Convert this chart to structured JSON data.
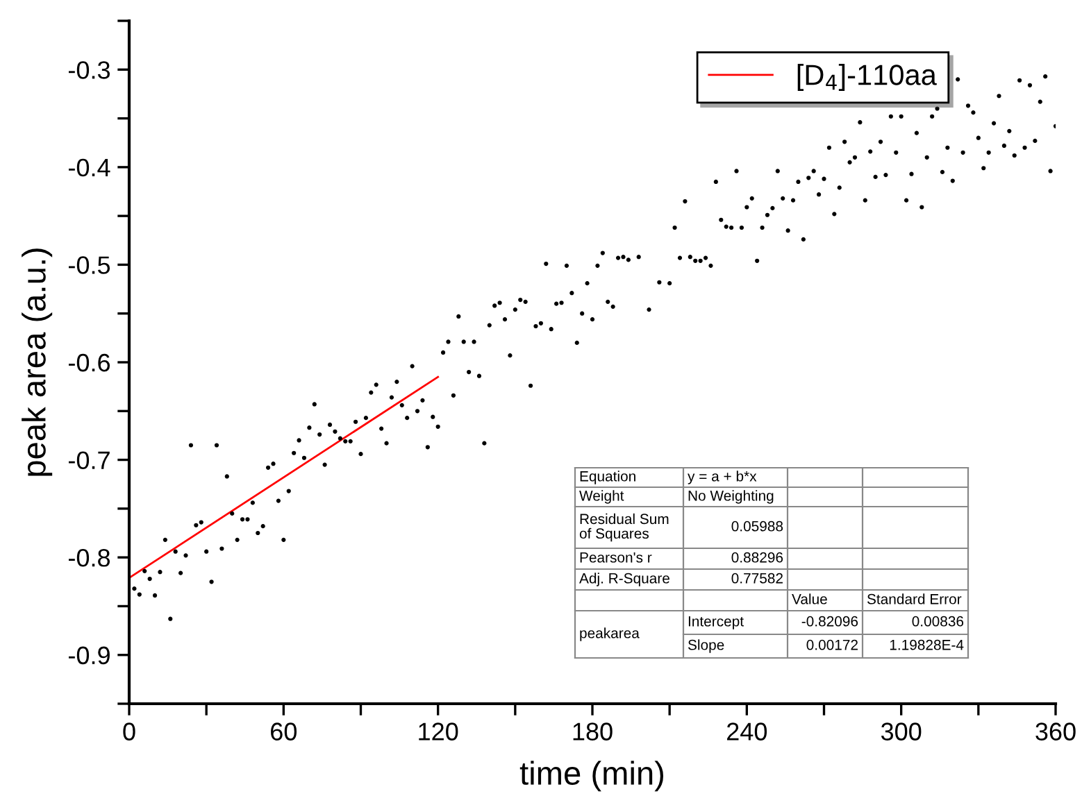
{
  "chart_data": {
    "type": "scatter",
    "xlabel": "time (min)",
    "ylabel": "peak area (a.u.)",
    "xlim": [
      0,
      360
    ],
    "ylim": [
      -0.95,
      -0.25
    ],
    "xticks": [
      0,
      {
        "value": 30,
        "label": null
      },
      60,
      {
        "value": 90,
        "label": null
      },
      120,
      {
        "value": 150,
        "label": null
      },
      180,
      {
        "value": 210,
        "label": null
      },
      240,
      {
        "value": 270,
        "label": null
      },
      300,
      {
        "value": 330,
        "label": null
      },
      360
    ],
    "yticks": [
      {
        "value": -0.95,
        "label": null
      },
      -0.9,
      {
        "value": -0.85,
        "label": null
      },
      -0.8,
      {
        "value": -0.75,
        "label": null
      },
      -0.7,
      {
        "value": -0.65,
        "label": null
      },
      -0.6,
      {
        "value": -0.55,
        "label": null
      },
      -0.5,
      {
        "value": -0.45,
        "label": null
      },
      -0.4,
      {
        "value": -0.35,
        "label": null
      },
      -0.3,
      {
        "value": -0.25,
        "label": null
      }
    ],
    "legend": "top right",
    "series": [
      {
        "color": "#000000",
        "marker": "circle",
        "x": [
          2,
          4,
          6,
          8,
          10,
          12,
          14,
          16,
          18,
          20,
          22,
          24,
          26,
          28,
          30,
          32,
          34,
          36,
          38,
          40,
          42,
          44,
          46,
          48,
          50,
          52,
          54,
          56,
          58,
          60,
          62,
          64,
          66,
          68,
          70,
          72,
          74,
          76,
          78,
          80,
          82,
          84,
          86,
          88,
          90,
          92,
          94,
          96,
          98,
          100,
          102,
          104,
          106,
          108,
          110,
          112,
          114,
          116,
          118,
          120,
          122,
          124,
          126,
          128,
          130,
          132,
          134,
          136,
          138,
          140,
          142,
          144,
          146,
          148,
          150,
          152,
          154,
          156,
          158,
          160,
          162,
          164,
          166,
          168,
          170,
          172,
          174,
          176,
          178,
          180,
          182,
          184,
          186,
          188,
          190,
          192,
          194,
          198,
          202,
          206,
          210,
          212,
          214,
          216,
          218,
          220,
          222,
          224,
          226,
          228,
          230,
          232,
          234,
          236,
          238,
          240,
          242,
          244,
          246,
          248,
          250,
          252,
          254,
          256,
          258,
          260,
          262,
          264,
          266,
          268,
          270,
          272,
          274,
          276,
          278,
          280,
          282,
          284,
          286,
          288,
          290,
          292,
          294,
          296,
          298,
          300,
          302,
          304,
          306,
          308,
          310,
          312,
          314,
          316,
          318,
          320,
          322,
          324,
          326,
          328,
          330,
          332,
          334,
          336,
          338,
          340,
          342,
          344,
          346,
          348,
          350,
          352,
          354,
          356,
          358,
          360
        ],
        "values": [
          -0.832,
          -0.838,
          -0.814,
          -0.822,
          -0.839,
          -0.815,
          -0.782,
          -0.863,
          -0.794,
          -0.816,
          -0.798,
          -0.685,
          -0.767,
          -0.764,
          -0.794,
          -0.825,
          -0.685,
          -0.791,
          -0.717,
          -0.755,
          -0.782,
          -0.761,
          -0.761,
          -0.744,
          -0.775,
          -0.768,
          -0.708,
          -0.704,
          -0.742,
          -0.782,
          -0.732,
          -0.693,
          -0.68,
          -0.698,
          -0.667,
          -0.643,
          -0.674,
          -0.705,
          -0.664,
          -0.671,
          -0.678,
          -0.681,
          -0.681,
          -0.661,
          -0.694,
          -0.657,
          -0.631,
          -0.623,
          -0.668,
          -0.683,
          -0.636,
          -0.62,
          -0.644,
          -0.657,
          -0.604,
          -0.65,
          -0.639,
          -0.687,
          -0.656,
          -0.666,
          -0.59,
          -0.579,
          -0.634,
          -0.553,
          -0.579,
          -0.61,
          -0.579,
          -0.614,
          -0.683,
          -0.562,
          -0.542,
          -0.539,
          -0.556,
          -0.593,
          -0.546,
          -0.536,
          -0.538,
          -0.624,
          -0.563,
          -0.56,
          -0.499,
          -0.566,
          -0.54,
          -0.539,
          -0.501,
          -0.529,
          -0.58,
          -0.55,
          -0.519,
          -0.556,
          -0.501,
          -0.488,
          -0.538,
          -0.543,
          -0.493,
          -0.492,
          -0.495,
          -0.492,
          -0.546,
          -0.518,
          -0.519,
          -0.462,
          -0.493,
          -0.435,
          -0.492,
          -0.496,
          -0.496,
          -0.493,
          -0.501,
          -0.415,
          -0.454,
          -0.461,
          -0.462,
          -0.404,
          -0.462,
          -0.441,
          -0.432,
          -0.496,
          -0.462,
          -0.449,
          -0.442,
          -0.404,
          -0.432,
          -0.465,
          -0.434,
          -0.415,
          -0.474,
          -0.411,
          -0.404,
          -0.428,
          -0.412,
          -0.38,
          -0.448,
          -0.421,
          -0.374,
          -0.395,
          -0.39,
          -0.354,
          -0.434,
          -0.384,
          -0.41,
          -0.374,
          -0.408,
          -0.348,
          -0.385,
          -0.348,
          -0.434,
          -0.407,
          -0.365,
          -0.441,
          -0.39,
          -0.348,
          -0.34,
          -0.405,
          -0.38,
          -0.414,
          -0.31,
          -0.385,
          -0.337,
          -0.344,
          -0.37,
          -0.401,
          -0.385,
          -0.355,
          -0.327,
          -0.378,
          -0.363,
          -0.388,
          -0.311,
          -0.38,
          -0.316,
          -0.373,
          -0.333,
          -0.307,
          -0.404,
          -0.358
        ]
      },
      {
        "type": "line",
        "name": "[D$_{4}$]-110aa",
        "color": "#ff0000",
        "marker": "none",
        "line_style": "solid",
        "x": [
          0,
          120
        ],
        "values": [
          -0.821,
          -0.615
        ]
      }
    ],
    "annotations": [
      "Equation",
      "y = a + b*x",
      "Weight",
      "No Weighting",
      "Residual Sum\nof Squares",
      "0.05988",
      "Pearson's r",
      "0.88296",
      "Adj. R-Square",
      "0.77582",
      "Value",
      "Standard Error",
      "peakarea",
      "Intercept",
      "-0.82096",
      "0.00836",
      "Slope",
      "0.00172",
      "1.19828E-4"
    ]
  }
}
